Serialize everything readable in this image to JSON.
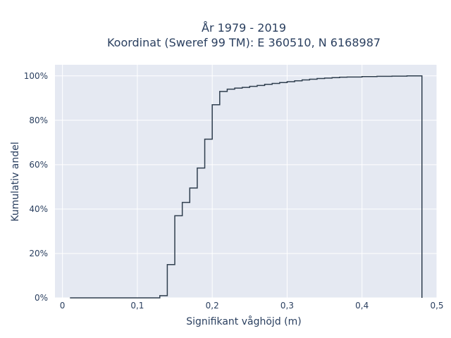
{
  "chart_data": {
    "type": "line",
    "step": true,
    "title_line1": "År 1979 - 2019",
    "title_line2": "Koordinat (Sweref 99 TM): E 360510, N 6168987",
    "xlabel": "Signifikant våghöjd (m)",
    "ylabel": "Kumulativ andel",
    "xlim": [
      -0.01,
      0.5
    ],
    "ylim": [
      0,
      1.05
    ],
    "x_ticks": [
      0,
      0.1,
      0.2,
      0.3,
      0.4,
      0.5
    ],
    "x_tick_labels": [
      "0",
      "0,1",
      "0,2",
      "0,3",
      "0,4",
      "0,5"
    ],
    "y_ticks": [
      0,
      0.2,
      0.4,
      0.6,
      0.8,
      1.0
    ],
    "y_tick_labels": [
      "0%",
      "20%",
      "40%",
      "60%",
      "80%",
      "100%"
    ],
    "grid": true,
    "colors": {
      "plot_bg": "#e5e9f2",
      "grid": "#ffffff",
      "line": "#2f3e4e",
      "text": "#2a3f5f"
    },
    "series": [
      {
        "x": [
          0.01,
          0.13,
          0.14,
          0.15,
          0.16,
          0.17,
          0.18,
          0.19,
          0.2,
          0.21,
          0.22,
          0.23,
          0.24,
          0.25,
          0.26,
          0.27,
          0.28,
          0.29,
          0.3,
          0.31,
          0.32,
          0.33,
          0.34,
          0.35,
          0.36,
          0.37,
          0.38,
          0.4,
          0.42,
          0.44,
          0.46,
          0.48,
          0.48
        ],
        "y": [
          0.0,
          0.01,
          0.15,
          0.37,
          0.43,
          0.495,
          0.585,
          0.715,
          0.87,
          0.93,
          0.94,
          0.945,
          0.948,
          0.953,
          0.957,
          0.962,
          0.966,
          0.97,
          0.974,
          0.978,
          0.982,
          0.985,
          0.988,
          0.99,
          0.992,
          0.994,
          0.995,
          0.997,
          0.998,
          0.999,
          1.0,
          1.0,
          0.0
        ]
      }
    ]
  }
}
